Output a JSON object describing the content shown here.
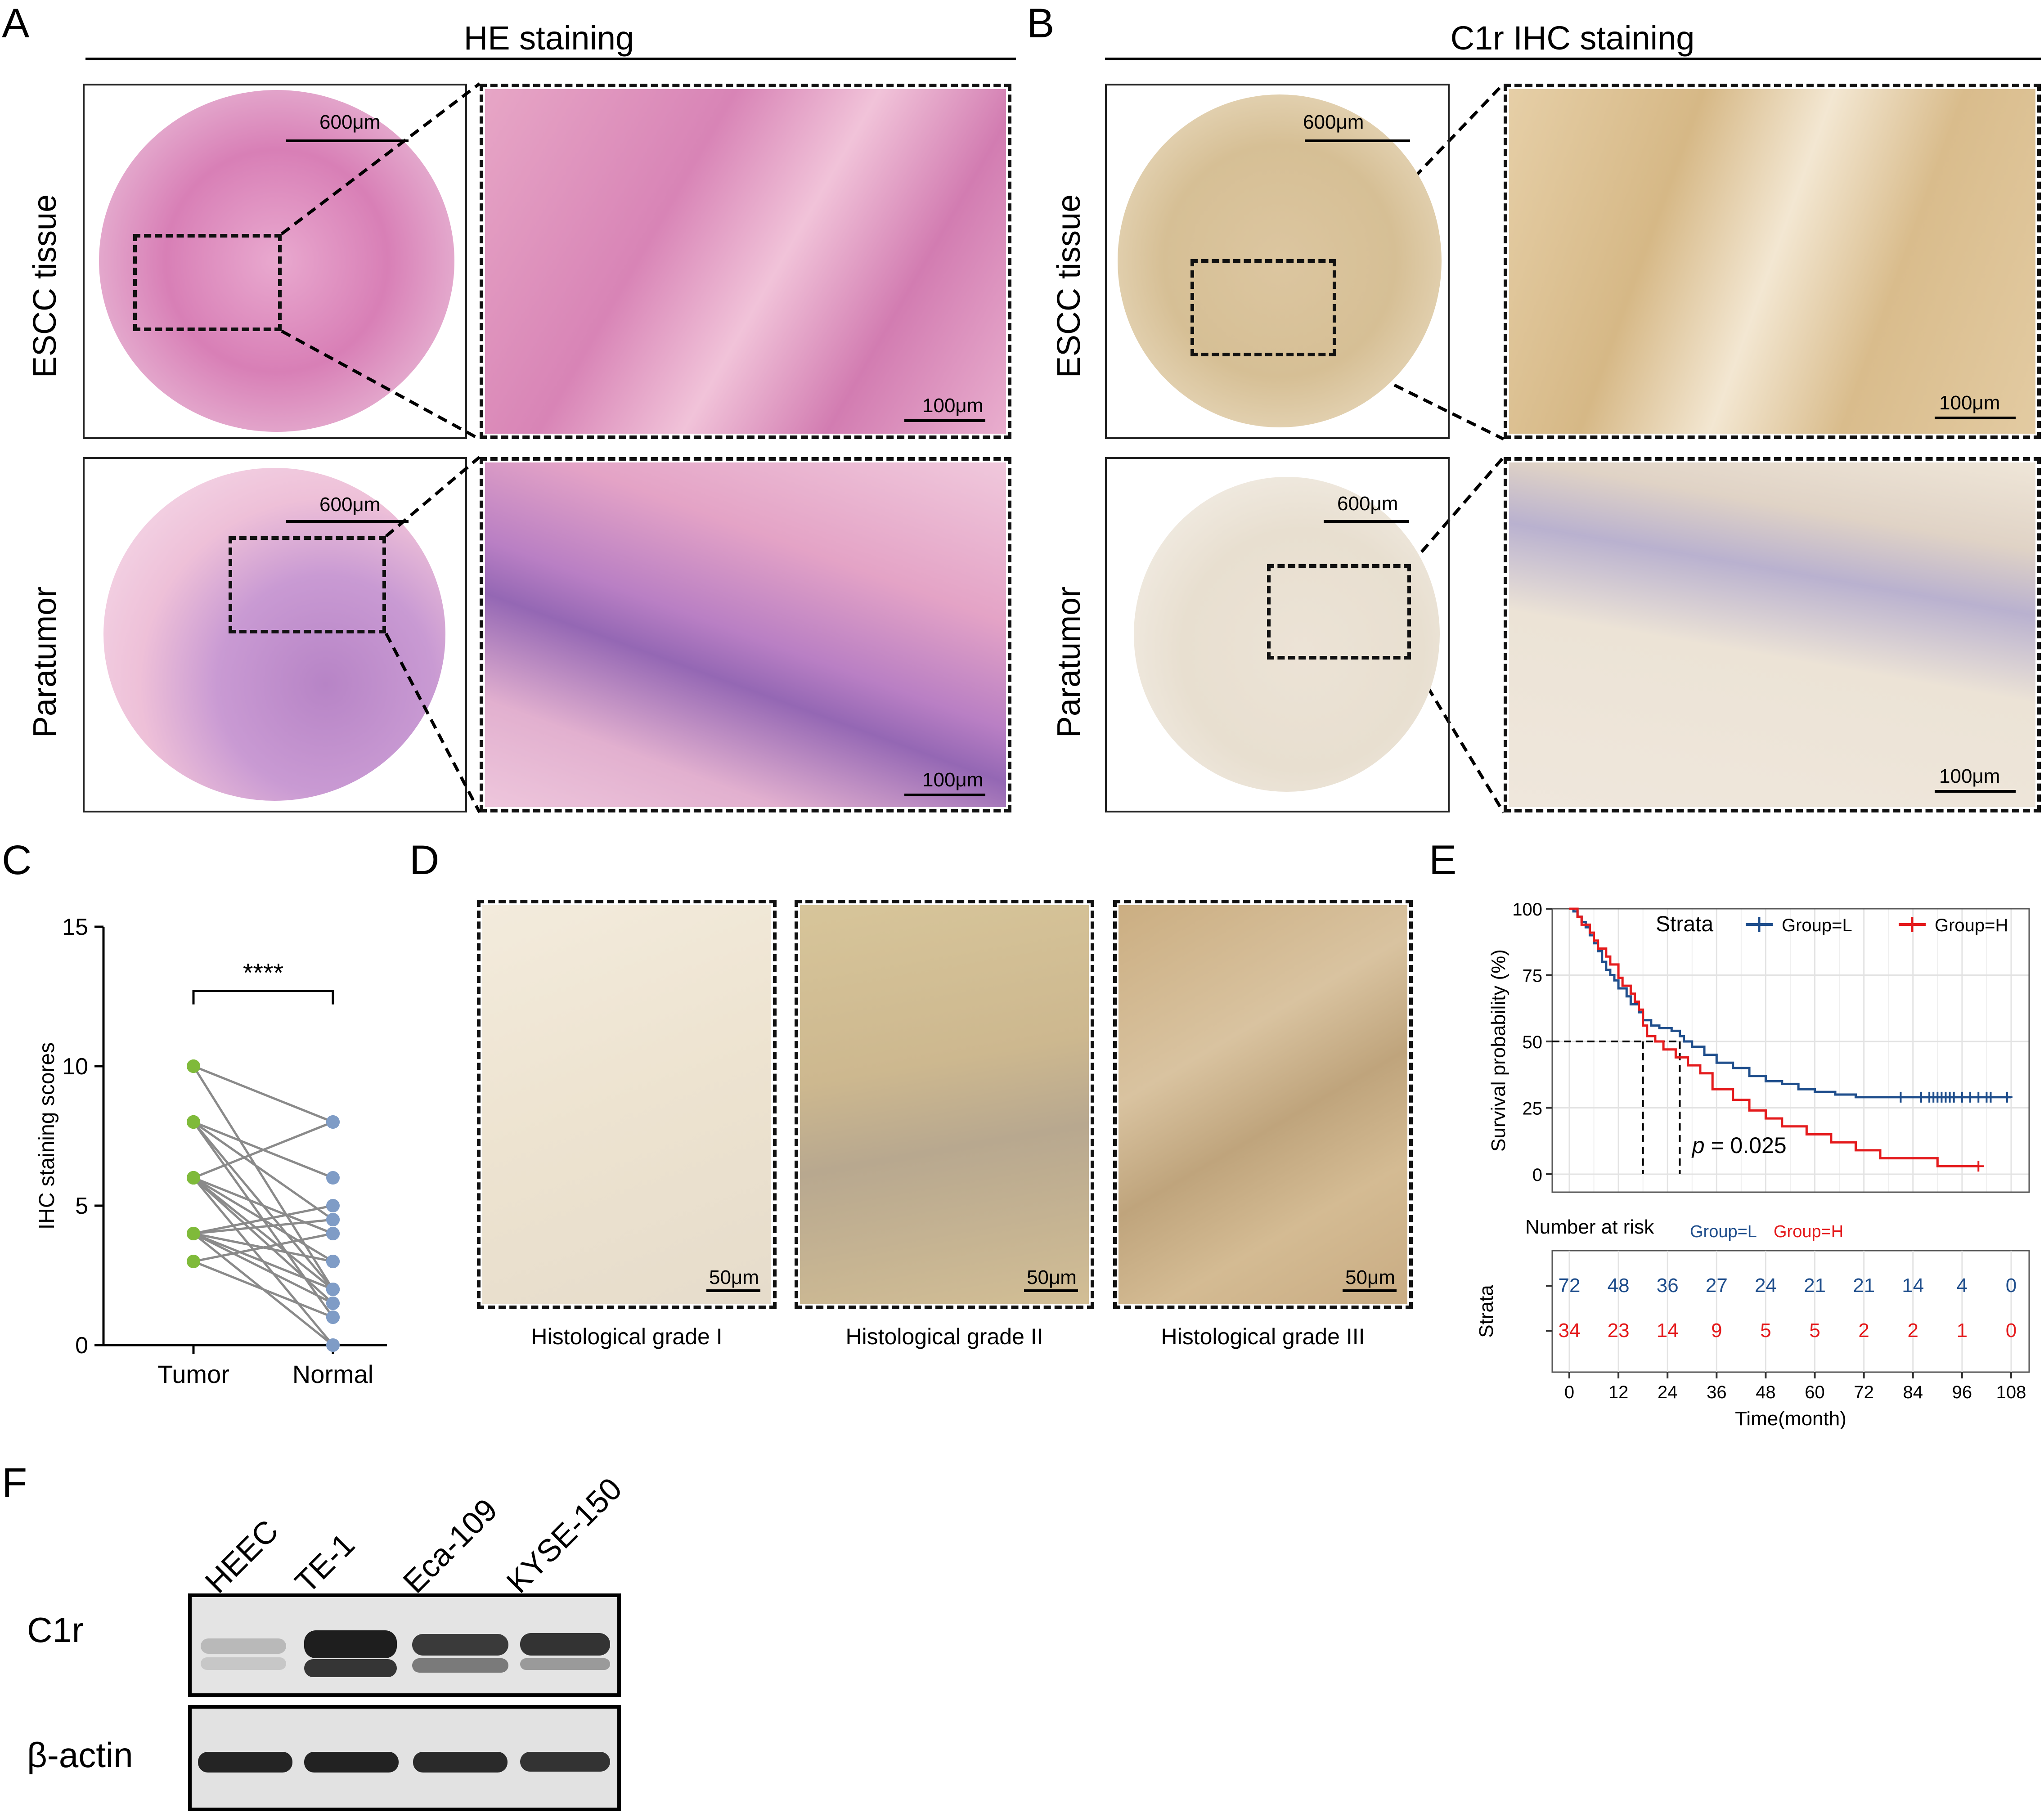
{
  "panels": {
    "A": {
      "letter": "A",
      "title": "HE staining",
      "rows": [
        "ESCC tissue",
        "Paratumor"
      ],
      "scale_overview": "600μm",
      "scale_zoom": "100μm"
    },
    "B": {
      "letter": "B",
      "title": "C1r IHC staining",
      "rows": [
        "ESCC tissue",
        "Paratumor"
      ],
      "scale_overview": "600μm",
      "scale_zoom": "100μm"
    },
    "C": {
      "letter": "C"
    },
    "D": {
      "letter": "D",
      "scale": "50μm",
      "captions": [
        "Histological grade I",
        "Histological grade II",
        "Histological grade III"
      ]
    },
    "E": {
      "letter": "E"
    },
    "F": {
      "letter": "F",
      "lanes": [
        "HEEC",
        "TE-1",
        "Eca-109",
        "KYSE-150"
      ],
      "bands": [
        "C1r",
        "β-actin"
      ]
    }
  },
  "chart_data": [
    {
      "type": "scatter",
      "panel": "C",
      "xlabel": "",
      "ylabel": "IHC staining scores",
      "categories": [
        "Tumor",
        "Normal"
      ],
      "ylim": [
        0,
        15
      ],
      "yticks": [
        0,
        5,
        10,
        15
      ],
      "significance": "****",
      "colors": {
        "tumor": "#7fba3a",
        "normal": "#7f9cc6",
        "line": "#8a8a8a"
      },
      "pairs": [
        [
          10,
          8
        ],
        [
          10,
          2
        ],
        [
          8,
          6
        ],
        [
          8,
          4.5
        ],
        [
          8,
          1
        ],
        [
          6,
          8
        ],
        [
          6,
          4
        ],
        [
          6,
          2
        ],
        [
          6,
          0
        ],
        [
          6,
          3
        ],
        [
          4,
          5
        ],
        [
          4,
          3
        ],
        [
          4,
          1.5
        ],
        [
          4,
          2
        ],
        [
          4,
          4.5
        ],
        [
          3,
          4
        ],
        [
          3,
          1
        ],
        [
          8,
          2
        ],
        [
          6,
          1.5
        ],
        [
          4,
          0
        ]
      ]
    },
    {
      "type": "line",
      "panel": "E",
      "ylabel": "Survival probability (%)",
      "xlabel": "Time(month)",
      "legend_title": "Strata",
      "legend_position": "top-right",
      "xlim": [
        0,
        108
      ],
      "ylim": [
        0,
        100
      ],
      "xticks": [
        0,
        12,
        24,
        36,
        48,
        60,
        72,
        84,
        96,
        108
      ],
      "yticks": [
        0,
        25,
        50,
        75,
        100
      ],
      "pvalue_prefix": "p",
      "pvalue_text": " = 0.025",
      "median_lines": {
        "y": 50,
        "x": [
          18,
          27
        ]
      },
      "series": [
        {
          "name": "Group=L",
          "color": "#1f4e8c",
          "steps": [
            [
              0,
              100
            ],
            [
              1,
              99
            ],
            [
              2,
              97
            ],
            [
              3,
              95
            ],
            [
              4,
              93
            ],
            [
              5,
              90
            ],
            [
              6,
              87
            ],
            [
              7,
              84
            ],
            [
              8,
              80
            ],
            [
              9,
              77
            ],
            [
              10,
              75
            ],
            [
              11,
              73
            ],
            [
              12,
              70
            ],
            [
              14,
              67
            ],
            [
              15,
              64
            ],
            [
              17,
              61
            ],
            [
              18,
              58
            ],
            [
              20,
              56
            ],
            [
              22,
              55
            ],
            [
              25,
              54
            ],
            [
              27,
              52
            ],
            [
              28,
              50
            ],
            [
              30,
              48
            ],
            [
              33,
              45
            ],
            [
              36,
              42
            ],
            [
              40,
              40
            ],
            [
              44,
              37
            ],
            [
              48,
              35
            ],
            [
              52,
              34
            ],
            [
              56,
              32
            ],
            [
              60,
              31
            ],
            [
              65,
              30
            ],
            [
              70,
              29
            ],
            [
              108,
              29
            ]
          ],
          "censors": [
            81,
            86,
            88,
            89,
            90,
            91,
            92,
            93,
            94,
            96,
            98,
            100,
            102,
            103,
            107
          ]
        },
        {
          "name": "Group=H",
          "color": "#e41a1c",
          "steps": [
            [
              0,
              100
            ],
            [
              2,
              97
            ],
            [
              3,
              94
            ],
            [
              5,
              91
            ],
            [
              6,
              88
            ],
            [
              7,
              85
            ],
            [
              9,
              82
            ],
            [
              10,
              79
            ],
            [
              12,
              74
            ],
            [
              13,
              71
            ],
            [
              15,
              68
            ],
            [
              16,
              65
            ],
            [
              17,
              62
            ],
            [
              18,
              56
            ],
            [
              19,
              52
            ],
            [
              21,
              50
            ],
            [
              23,
              47
            ],
            [
              26,
              44
            ],
            [
              29,
              41
            ],
            [
              32,
              38
            ],
            [
              35,
              32
            ],
            [
              40,
              28
            ],
            [
              44,
              24
            ],
            [
              48,
              21
            ],
            [
              52,
              18
            ],
            [
              58,
              15
            ],
            [
              64,
              12
            ],
            [
              70,
              9
            ],
            [
              76,
              6
            ],
            [
              82,
              6
            ],
            [
              90,
              3
            ],
            [
              100,
              3
            ]
          ],
          "censors": [
            100
          ]
        }
      ],
      "risk_table": {
        "title": "Number at risk",
        "legend": [
          "Group=L",
          "Group=H"
        ],
        "row_axis_label": "Strata",
        "rows": [
          {
            "name": "Group=L",
            "values": [
              "72",
              "48",
              "36",
              "27",
              "24",
              "21",
              "21",
              "14",
              "4",
              "0"
            ]
          },
          {
            "name": "Group=H",
            "values": [
              "34",
              "23",
              "14",
              "9",
              "5",
              "5",
              "2",
              "2",
              "1",
              "0"
            ]
          }
        ]
      }
    }
  ]
}
